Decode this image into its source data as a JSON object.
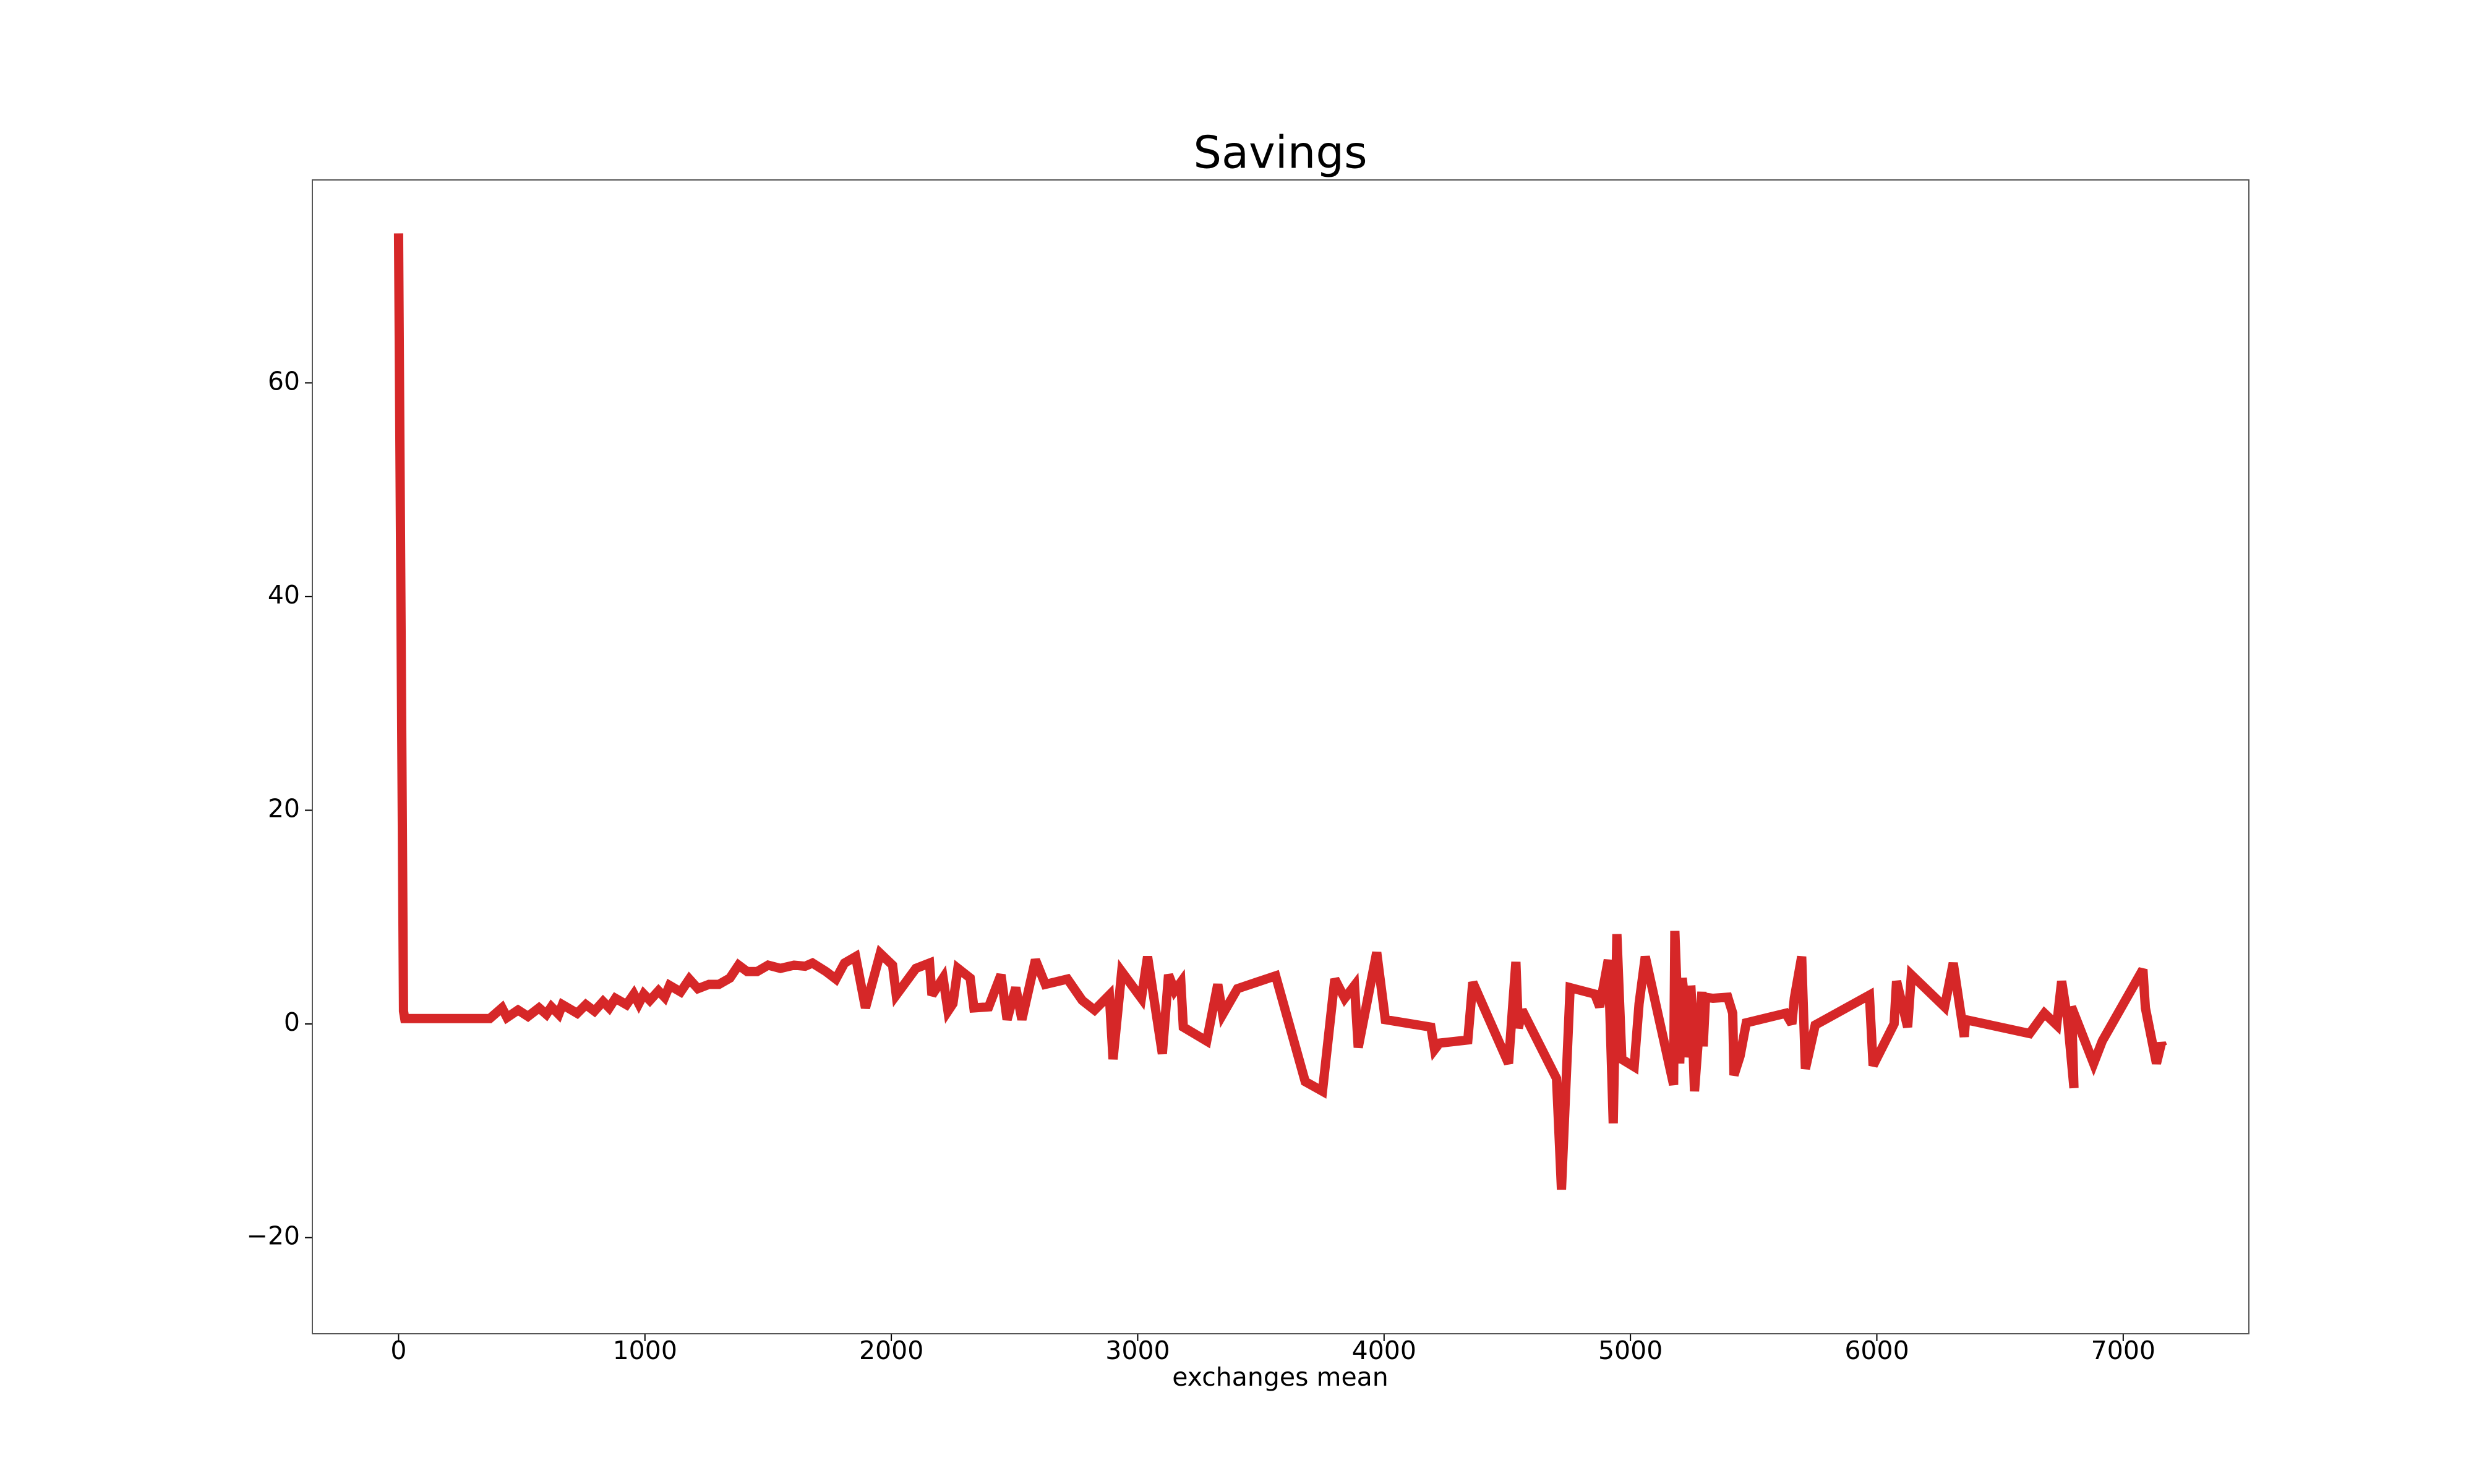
{
  "chart_data": {
    "type": "line",
    "title": "Savings",
    "x_label": "exchanges mean",
    "xlim": [
      -350,
      7510
    ],
    "ylim": [
      -29,
      79
    ],
    "xticks": [
      0,
      1000,
      2000,
      3000,
      4000,
      5000,
      6000,
      7000
    ],
    "yticks": [
      {
        "value": -20,
        "label": "−20"
      },
      0,
      20,
      40,
      60
    ],
    "grid": false,
    "series": [
      {
        "color": "#d62728",
        "x": [
          0,
          20,
          25,
          370,
          420,
          440,
          485,
          525,
          570,
          600,
          620,
          650,
          665,
          725,
          760,
          795,
          830,
          855,
          880,
          925,
          955,
          975,
          995,
          1020,
          1055,
          1080,
          1100,
          1145,
          1180,
          1215,
          1260,
          1300,
          1345,
          1380,
          1415,
          1455,
          1500,
          1550,
          1605,
          1650,
          1680,
          1735,
          1775,
          1810,
          1855,
          1895,
          1955,
          2005,
          2020,
          2100,
          2155,
          2165,
          2210,
          2230,
          2250,
          2270,
          2320,
          2335,
          2395,
          2445,
          2470,
          2505,
          2530,
          2585,
          2625,
          2715,
          2775,
          2825,
          2885,
          2900,
          2935,
          3015,
          3040,
          3100,
          3125,
          3150,
          3175,
          3185,
          3280,
          3325,
          3345,
          3370,
          3405,
          3560,
          3680,
          3750,
          3800,
          3840,
          3880,
          3895,
          3970,
          4005,
          4190,
          4205,
          4225,
          4340,
          4360,
          4505,
          4535,
          4545,
          4560,
          4700,
          4720,
          4755,
          4855,
          4875,
          4910,
          4930,
          4945,
          4965,
          5015,
          5035,
          5060,
          5175,
          5180,
          5200,
          5210,
          5220,
          5235,
          5255,
          5245,
          5260,
          5290,
          5295,
          5305,
          5335,
          5395,
          5415,
          5420,
          5445,
          5470,
          5630,
          5655,
          5665,
          5695,
          5710,
          5750,
          5970,
          5985,
          6070,
          6080,
          6125,
          6140,
          6275,
          6310,
          6355,
          6360,
          6620,
          6680,
          6730,
          6750,
          6775,
          6800,
          6790,
          6880,
          6915,
          7080,
          7090,
          7135,
          7155,
          7160
        ],
        "values": [
          74,
          1.2,
          0.5,
          0.5,
          1.5,
          0.6,
          1.3,
          0.7,
          1.5,
          0.9,
          1.6,
          0.9,
          1.8,
          1.0,
          1.8,
          1.2,
          2.1,
          1.5,
          2.4,
          1.8,
          2.8,
          1.9,
          2.8,
          2.2,
          3.1,
          2.5,
          3.6,
          3.0,
          4.2,
          3.3,
          3.7,
          3.7,
          4.3,
          5.5,
          4.9,
          4.9,
          5.5,
          5.2,
          5.5,
          5.4,
          5.7,
          4.9,
          4.2,
          5.7,
          6.3,
          1.5,
          6.6,
          5.5,
          2.7,
          5.2,
          5.7,
          2.7,
          4.3,
          1.2,
          1.9,
          5.2,
          4.3,
          1.5,
          1.6,
          4.6,
          0.4,
          3.4,
          0.4,
          6.0,
          3.7,
          4.2,
          2.2,
          1.3,
          2.7,
          -3.3,
          4.9,
          2.4,
          6.3,
          -2.8,
          4.6,
          3.1,
          3.9,
          -0.3,
          -1.6,
          3.7,
          0.9,
          1.9,
          3.3,
          4.5,
          -5.4,
          -6.3,
          4.2,
          2.4,
          3.6,
          -2.2,
          6.7,
          0.4,
          -0.3,
          -2.4,
          -1.8,
          -1.5,
          3.9,
          -3.7,
          5.8,
          -0.4,
          1.3,
          -5.1,
          -15.5,
          3.4,
          2.8,
          1.6,
          6.0,
          -9.3,
          8.4,
          -3.3,
          -4.0,
          1.9,
          6.3,
          -5.7,
          8.7,
          -3.7,
          4.3,
          2.2,
          -3.1,
          -0.7,
          3.6,
          -6.3,
          3.0,
          -2.1,
          2.5,
          2.4,
          2.5,
          1.0,
          -4.8,
          -3.0,
          0.1,
          1.0,
          0.0,
          2.4,
          6.3,
          -4.2,
          -0.1,
          2.7,
          -3.9,
          0.0,
          4.0,
          -0.3,
          4.6,
          1.6,
          5.7,
          -1.2,
          0.4,
          -0.9,
          1.0,
          -0.1,
          4.0,
          0.3,
          -6.0,
          1.6,
          -3.7,
          -1.6,
          5.1,
          1.5,
          -3.7,
          -1.8,
          -2.1
        ]
      }
    ]
  }
}
